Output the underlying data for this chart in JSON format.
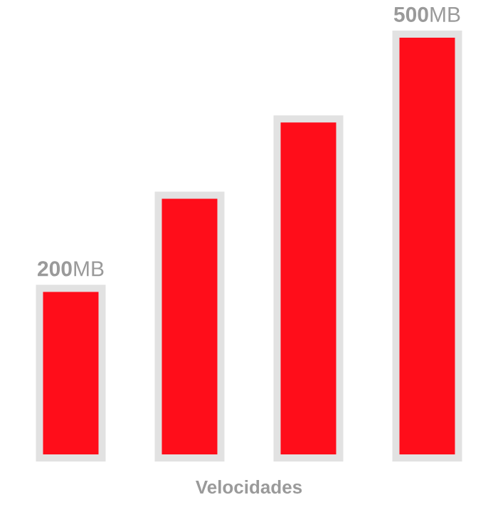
{
  "chart_data": {
    "type": "bar",
    "xlabel": "Velocidades",
    "categories": [
      null,
      null,
      null,
      null
    ],
    "values": [
      200,
      310,
      400,
      500
    ],
    "value_labels": [
      "**200**MB",
      null,
      null,
      "**500**MB"
    ],
    "color": "#ff0d1a"
  }
}
